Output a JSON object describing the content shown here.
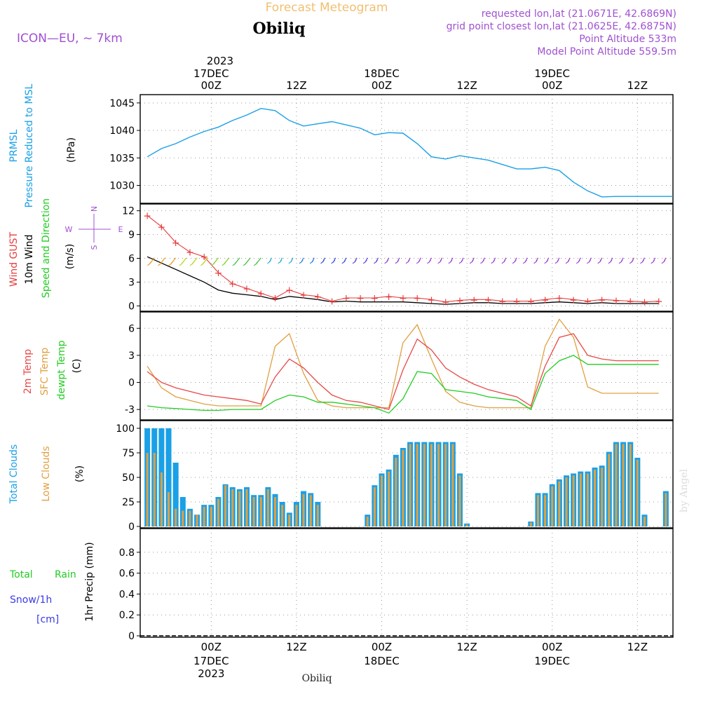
{
  "header": {
    "title": "Forecast Meteogram",
    "location": "Obiliq",
    "model": "ICON—EU, ~ 7km",
    "requested": "requested lon,lat (21.0671E, 42.6869N)",
    "grid_point": "grid point closest lon,lat (21.0625E, 42.6875N)",
    "point_altitude": "Point Altitude 533m",
    "model_altitude": "Model Point Altitude 559.5m",
    "credit": "by Angel",
    "footer_location": "Obiliq"
  },
  "colors": {
    "prmsl": "#1aa0e6",
    "gust": "#e63c3c",
    "wind": "#000000",
    "temp": "#e84848",
    "sfc_temp": "#e0a040",
    "dewpt": "#22cc22",
    "total_clouds": "#1aa0e6",
    "low_clouds": "#e0a040",
    "rain": "#22cc22",
    "snow": "#3a3ae6",
    "label_purple": "#a050d0",
    "title_orange": "#f0c070"
  },
  "time_axis": {
    "top_year": "2023",
    "bottom_year": "2023",
    "ticks": [
      {
        "hour": "00Z",
        "date": "17DEC"
      },
      {
        "hour": "12Z",
        "date": ""
      },
      {
        "hour": "00Z",
        "date": "18DEC"
      },
      {
        "hour": "12Z",
        "date": ""
      },
      {
        "hour": "00Z",
        "date": "19DEC"
      },
      {
        "hour": "12Z",
        "date": ""
      }
    ]
  },
  "panel_labels": {
    "pressure": [
      "PRMSL",
      "Pressure Reduced to MSL",
      "(hPa)"
    ],
    "wind": [
      "Wind GUST",
      "10m Wind",
      "Speed and Direction",
      "(m/s)"
    ],
    "compass": {
      "n": "N",
      "s": "S",
      "w": "W",
      "e": "E"
    },
    "temp": [
      "2m Temp",
      "SFC Temp",
      "dewpt Temp",
      "(C)"
    ],
    "clouds": [
      "Total Clouds",
      "Low Clouds",
      "(%)"
    ],
    "precip": [
      "Total",
      "Rain",
      "Snow/1h",
      "[cm]",
      "1hr Precip (mm)"
    ]
  },
  "chart_data": [
    {
      "type": "line",
      "name": "prmsl",
      "ylim": [
        1027,
        1046
      ],
      "yticks": [
        1030,
        1035,
        1040,
        1045
      ],
      "x_hours": [
        -9,
        -7,
        -5,
        -3,
        -1,
        1,
        3,
        5,
        7,
        9,
        11,
        13,
        15,
        17,
        19,
        21,
        23,
        25,
        27,
        29,
        31,
        33,
        35,
        37,
        39,
        41,
        43,
        45,
        47,
        49,
        51,
        53,
        55,
        57,
        59,
        61,
        63,
        65
      ],
      "values": [
        1035.2,
        1036.7,
        1037.6,
        1038.8,
        1039.8,
        1040.6,
        1041.8,
        1042.8,
        1044.0,
        1043.6,
        1041.8,
        1040.8,
        1041.2,
        1041.6,
        1041.0,
        1040.4,
        1039.2,
        1039.6,
        1039.5,
        1037.6,
        1035.2,
        1034.8,
        1035.4,
        1035.0,
        1034.6,
        1033.8,
        1033.0,
        1033.0,
        1033.3,
        1032.7,
        1030.6,
        1029.0,
        1027.9,
        1028.0,
        1028.0,
        1028.0,
        1028.0,
        1028.0
      ]
    },
    {
      "type": "line",
      "name": "wind",
      "ylim": [
        -0.5,
        12.5
      ],
      "yticks": [
        0,
        3,
        6,
        9,
        12
      ],
      "x_hours": [
        -9,
        -7,
        -5,
        -3,
        -1,
        1,
        3,
        5,
        7,
        9,
        11,
        13,
        15,
        17,
        19,
        21,
        23,
        25,
        27,
        29,
        31,
        33,
        35,
        37,
        39,
        41,
        43,
        45,
        47,
        49,
        51,
        53,
        55,
        57,
        59,
        61,
        63
      ],
      "gust": [
        11.4,
        10.0,
        8.0,
        6.8,
        6.2,
        4.2,
        2.8,
        2.2,
        1.6,
        1.0,
        2.0,
        1.4,
        1.2,
        0.6,
        1.0,
        1.0,
        1.0,
        1.2,
        1.0,
        1.0,
        0.8,
        0.5,
        0.7,
        0.8,
        0.8,
        0.6,
        0.6,
        0.6,
        0.8,
        1.0,
        0.8,
        0.6,
        0.8,
        0.7,
        0.6,
        0.5,
        0.6
      ],
      "speed": [
        6.2,
        5.4,
        4.6,
        3.8,
        3.0,
        2.0,
        1.6,
        1.4,
        1.2,
        0.8,
        1.2,
        1.0,
        0.8,
        0.5,
        0.6,
        0.5,
        0.5,
        0.5,
        0.5,
        0.4,
        0.3,
        0.2,
        0.3,
        0.4,
        0.4,
        0.3,
        0.3,
        0.3,
        0.4,
        0.5,
        0.4,
        0.3,
        0.4,
        0.3,
        0.3,
        0.3,
        0.3
      ]
    },
    {
      "type": "line",
      "name": "temperature",
      "ylim": [
        -4,
        7.5
      ],
      "yticks": [
        -3,
        0,
        3,
        6
      ],
      "x_hours": [
        -9,
        -7,
        -5,
        -3,
        -1,
        1,
        3,
        5,
        7,
        9,
        11,
        13,
        15,
        17,
        19,
        21,
        23,
        25,
        27,
        29,
        31,
        33,
        35,
        37,
        39,
        41,
        43,
        45,
        47,
        49,
        51,
        53,
        55,
        57,
        59,
        61,
        63
      ],
      "temp_2m": [
        1.2,
        0.0,
        -0.6,
        -1.0,
        -1.4,
        -1.6,
        -1.8,
        -2.0,
        -2.4,
        0.6,
        2.6,
        1.6,
        0.0,
        -1.4,
        -2.0,
        -2.2,
        -2.6,
        -3.0,
        1.4,
        4.8,
        3.6,
        1.6,
        0.6,
        -0.2,
        -0.8,
        -1.2,
        -1.6,
        -2.6,
        1.8,
        5.0,
        5.4,
        3.0,
        2.6,
        2.4,
        2.4,
        2.4,
        2.4
      ],
      "sfc_temp": [
        1.8,
        -0.6,
        -1.6,
        -2.0,
        -2.4,
        -2.6,
        -2.6,
        -2.6,
        -2.6,
        4.0,
        5.4,
        1.0,
        -2.0,
        -2.6,
        -2.8,
        -2.8,
        -2.8,
        -2.8,
        4.4,
        6.4,
        2.6,
        -1.0,
        -2.2,
        -2.6,
        -2.8,
        -2.8,
        -2.8,
        -2.8,
        4.0,
        7.0,
        5.0,
        -0.5,
        -1.2,
        -1.2,
        -1.2,
        -1.2,
        -1.2
      ],
      "dewpt": [
        -2.6,
        -2.8,
        -2.9,
        -3.0,
        -3.1,
        -3.1,
        -3.0,
        -3.0,
        -3.0,
        -2.0,
        -1.4,
        -1.6,
        -2.2,
        -2.2,
        -2.4,
        -2.6,
        -2.8,
        -3.4,
        -1.8,
        1.2,
        1.0,
        -0.8,
        -1.0,
        -1.2,
        -1.6,
        -1.8,
        -2.0,
        -3.0,
        1.0,
        2.4,
        3.0,
        2.0,
        2.0,
        2.0,
        2.0,
        2.0,
        2.0
      ]
    },
    {
      "type": "bar",
      "name": "clouds",
      "ylim": [
        0,
        105
      ],
      "yticks": [
        0,
        25,
        50,
        75,
        100
      ],
      "x_hours": [
        -9,
        -8,
        -7,
        -6,
        -5,
        -4,
        -3,
        -2,
        -1,
        0,
        1,
        2,
        3,
        4,
        5,
        6,
        7,
        8,
        9,
        10,
        11,
        12,
        13,
        14,
        15,
        16,
        17,
        18,
        19,
        20,
        21,
        22,
        23,
        24,
        25,
        26,
        27,
        28,
        29,
        30,
        31,
        32,
        33,
        34,
        35,
        36,
        37,
        38,
        39,
        40,
        41,
        42,
        43,
        44,
        45,
        46,
        47,
        48,
        49,
        50,
        51,
        52,
        53,
        54,
        55,
        56,
        57,
        58,
        59,
        60,
        61,
        62,
        63,
        64
      ],
      "total": [
        100,
        100,
        100,
        100,
        65,
        30,
        18,
        12,
        22,
        22,
        30,
        43,
        40,
        38,
        40,
        32,
        32,
        40,
        33,
        25,
        14,
        25,
        36,
        34,
        25,
        0,
        0,
        0,
        0,
        0,
        0,
        12,
        42,
        54,
        58,
        73,
        80,
        86,
        86,
        86,
        86,
        86,
        86,
        86,
        54,
        3,
        0,
        0,
        0,
        0,
        0,
        0,
        0,
        0,
        5,
        34,
        34,
        43,
        48,
        52,
        54,
        56,
        56,
        60,
        62,
        76,
        86,
        86,
        86,
        70,
        12,
        0,
        0,
        36
      ],
      "low": [
        75,
        75,
        55,
        35,
        18,
        16,
        16,
        12,
        20,
        20,
        28,
        42,
        38,
        36,
        38,
        30,
        30,
        38,
        30,
        22,
        12,
        22,
        33,
        32,
        22,
        0,
        0,
        0,
        0,
        0,
        0,
        10,
        40,
        52,
        56,
        70,
        78,
        84,
        84,
        84,
        84,
        84,
        84,
        84,
        52,
        2,
        0,
        0,
        0,
        0,
        0,
        0,
        0,
        0,
        4,
        32,
        32,
        41,
        46,
        50,
        52,
        54,
        54,
        58,
        60,
        74,
        84,
        84,
        84,
        68,
        10,
        0,
        0,
        34
      ]
    },
    {
      "type": "bar",
      "name": "precipitation",
      "ylim": [
        0,
        1
      ],
      "yticks": [
        0,
        0.2,
        0.4,
        0.6,
        0.8
      ],
      "values": []
    }
  ]
}
